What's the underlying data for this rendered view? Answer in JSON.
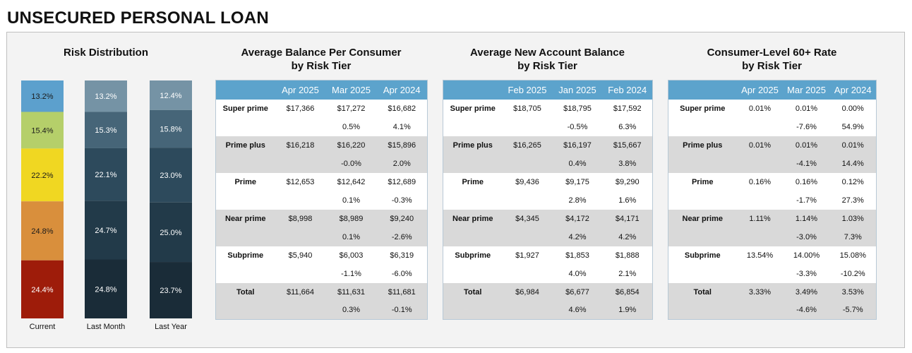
{
  "page_title": "UNSECURED PERSONAL LOAN",
  "colors": {
    "header_blue": "#5ca3cc",
    "row_shade": "#d9d9d9",
    "tier_colors_current": [
      "#5ca0cd",
      "#b5cf6a",
      "#f0d722",
      "#d98f3c",
      "#9e1c0a"
    ],
    "tier_colors_last_month": [
      "#7593a5",
      "#466578",
      "#2d4a5c",
      "#223a49",
      "#1a2c38"
    ],
    "tier_colors_last_year": [
      "#7593a5",
      "#466578",
      "#2d4a5c",
      "#223a49",
      "#1a2c38"
    ]
  },
  "chart_data": [
    {
      "type": "bar",
      "stacked": true,
      "title": "Risk Distribution",
      "categories": [
        "Current",
        "Last Month",
        "Last Year"
      ],
      "stack_order": "top-to-bottom: Super prime, Prime plus, Prime, Near prime, Subprime",
      "bars": [
        {
          "category": "Current",
          "values": [
            13.2,
            15.4,
            22.2,
            24.8,
            24.4
          ],
          "labels": [
            "13.2%",
            "15.4%",
            "22.2%",
            "24.8%",
            "24.4%"
          ]
        },
        {
          "category": "Last Month",
          "values": [
            13.2,
            15.3,
            22.1,
            24.7,
            24.8
          ],
          "labels": [
            "13.2%",
            "15.3%",
            "22.1%",
            "24.7%",
            "24.8%"
          ]
        },
        {
          "category": "Last Year",
          "values": [
            12.4,
            15.8,
            23.0,
            25.0,
            23.7
          ],
          "labels": [
            "12.4%",
            "15.8%",
            "23.0%",
            "25.0%",
            "23.7%"
          ]
        }
      ]
    },
    {
      "type": "table",
      "title": [
        "Average Balance Per Consumer",
        "by Risk Tier"
      ],
      "columns": [
        "",
        "Apr 2025",
        "Mar 2025",
        "Apr 2024"
      ],
      "rows": [
        {
          "label": "Super prime",
          "values": [
            "$17,366",
            "$17,272",
            "$16,682"
          ],
          "changes": [
            "",
            "0.5%",
            "4.1%"
          ]
        },
        {
          "label": "Prime plus",
          "values": [
            "$16,218",
            "$16,220",
            "$15,896"
          ],
          "changes": [
            "",
            "-0.0%",
            "2.0%"
          ]
        },
        {
          "label": "Prime",
          "values": [
            "$12,653",
            "$12,642",
            "$12,689"
          ],
          "changes": [
            "",
            "0.1%",
            "-0.3%"
          ]
        },
        {
          "label": "Near prime",
          "values": [
            "$8,998",
            "$8,989",
            "$9,240"
          ],
          "changes": [
            "",
            "0.1%",
            "-2.6%"
          ]
        },
        {
          "label": "Subprime",
          "values": [
            "$5,940",
            "$6,003",
            "$6,319"
          ],
          "changes": [
            "",
            "-1.1%",
            "-6.0%"
          ]
        },
        {
          "label": "Total",
          "values": [
            "$11,664",
            "$11,631",
            "$11,681"
          ],
          "changes": [
            "",
            "0.3%",
            "-0.1%"
          ]
        }
      ]
    },
    {
      "type": "table",
      "title": [
        "Average New Account Balance",
        "by Risk Tier"
      ],
      "columns": [
        "",
        "Feb 2025",
        "Jan 2025",
        "Feb 2024"
      ],
      "rows": [
        {
          "label": "Super prime",
          "values": [
            "$18,705",
            "$18,795",
            "$17,592"
          ],
          "changes": [
            "",
            "-0.5%",
            "6.3%"
          ]
        },
        {
          "label": "Prime plus",
          "values": [
            "$16,265",
            "$16,197",
            "$15,667"
          ],
          "changes": [
            "",
            "0.4%",
            "3.8%"
          ]
        },
        {
          "label": "Prime",
          "values": [
            "$9,436",
            "$9,175",
            "$9,290"
          ],
          "changes": [
            "",
            "2.8%",
            "1.6%"
          ]
        },
        {
          "label": "Near prime",
          "values": [
            "$4,345",
            "$4,172",
            "$4,171"
          ],
          "changes": [
            "",
            "4.2%",
            "4.2%"
          ]
        },
        {
          "label": "Subprime",
          "values": [
            "$1,927",
            "$1,853",
            "$1,888"
          ],
          "changes": [
            "",
            "4.0%",
            "2.1%"
          ]
        },
        {
          "label": "Total",
          "values": [
            "$6,984",
            "$6,677",
            "$6,854"
          ],
          "changes": [
            "",
            "4.6%",
            "1.9%"
          ]
        }
      ]
    },
    {
      "type": "table",
      "title": [
        "Consumer-Level 60+ Rate",
        "by Risk Tier"
      ],
      "columns": [
        "",
        "Apr 2025",
        "Mar 2025",
        "Apr 2024"
      ],
      "rows": [
        {
          "label": "Super prime",
          "values": [
            "0.01%",
            "0.01%",
            "0.00%"
          ],
          "changes": [
            "",
            "-7.6%",
            "54.9%"
          ]
        },
        {
          "label": "Prime plus",
          "values": [
            "0.01%",
            "0.01%",
            "0.01%"
          ],
          "changes": [
            "",
            "-4.1%",
            "14.4%"
          ]
        },
        {
          "label": "Prime",
          "values": [
            "0.16%",
            "0.16%",
            "0.12%"
          ],
          "changes": [
            "",
            "-1.7%",
            "27.3%"
          ]
        },
        {
          "label": "Near prime",
          "values": [
            "1.11%",
            "1.14%",
            "1.03%"
          ],
          "changes": [
            "",
            "-3.0%",
            "7.3%"
          ]
        },
        {
          "label": "Subprime",
          "values": [
            "13.54%",
            "14.00%",
            "15.08%"
          ],
          "changes": [
            "",
            "-3.3%",
            "-10.2%"
          ]
        },
        {
          "label": "Total",
          "values": [
            "3.33%",
            "3.49%",
            "3.53%"
          ],
          "changes": [
            "",
            "-4.6%",
            "-5.7%"
          ]
        }
      ]
    }
  ]
}
